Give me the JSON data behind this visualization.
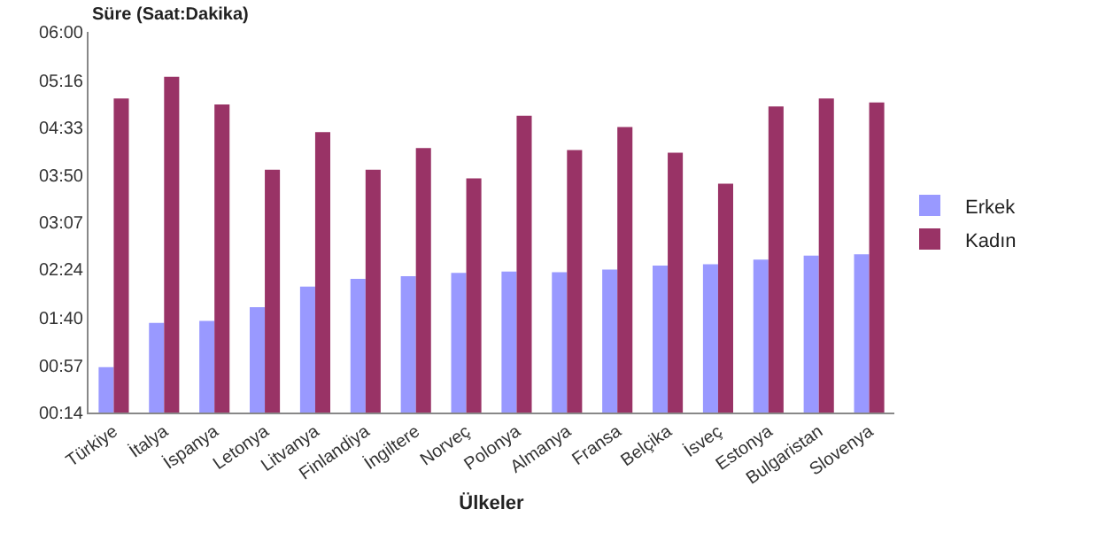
{
  "chart_data": {
    "type": "bar",
    "ylabel": "Süre (Saat:Dakika)",
    "xlabel": "Ülkeler",
    "categories": [
      "Türkiye",
      "İtalya",
      "İspanya",
      "Letonya",
      "Litvanya",
      "Finlandiya",
      "İngiltere",
      "Norveç",
      "Polonya",
      "Almanya",
      "Fransa",
      "Belçika",
      "İsveç",
      "Estonya",
      "Bulgaristan",
      "Slovenya"
    ],
    "series": [
      {
        "name": "Erkek",
        "color": "#9999ff",
        "values": [
          0.92,
          1.59,
          1.62,
          1.83,
          2.14,
          2.26,
          2.3,
          2.35,
          2.37,
          2.36,
          2.4,
          2.46,
          2.48,
          2.55,
          2.61,
          2.63
        ]
      },
      {
        "name": "Kadın",
        "color": "#993366",
        "values": [
          4.99,
          5.32,
          4.9,
          3.91,
          4.48,
          3.91,
          4.24,
          3.78,
          4.73,
          4.21,
          4.56,
          4.17,
          3.7,
          4.87,
          4.99,
          4.93
        ]
      }
    ],
    "ylim": [
      0.2333,
      6
    ],
    "yticks": [
      {
        "value": 0.2333,
        "label": "00:14"
      },
      {
        "value": 0.95,
        "label": "00:57"
      },
      {
        "value": 1.6667,
        "label": "01:40"
      },
      {
        "value": 2.4,
        "label": "02:24"
      },
      {
        "value": 3.1167,
        "label": "03:07"
      },
      {
        "value": 3.8333,
        "label": "03:50"
      },
      {
        "value": 4.55,
        "label": "04:33"
      },
      {
        "value": 5.2667,
        "label": "05:16"
      },
      {
        "value": 6,
        "label": "06:00"
      }
    ],
    "legend": "right"
  }
}
